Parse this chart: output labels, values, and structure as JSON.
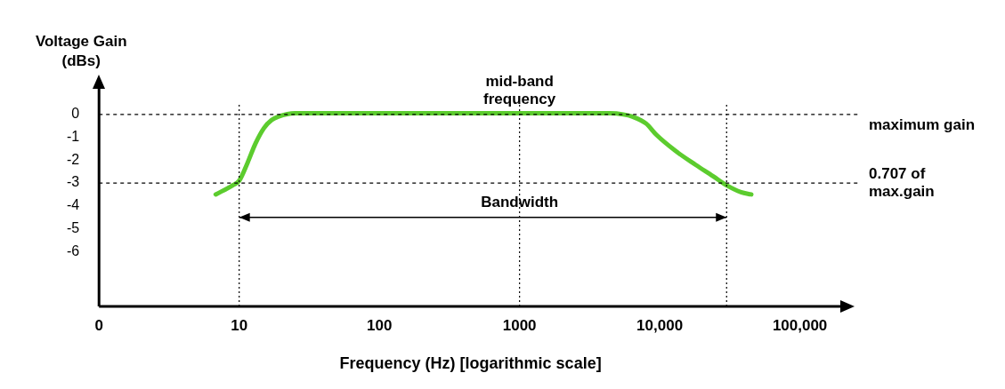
{
  "chart_data": {
    "type": "line",
    "xlabel": "Frequency (Hz) [logarithmic scale]",
    "ylabel": "Voltage Gain (dBs)",
    "log": "x",
    "grid": false,
    "legend": false,
    "marker": "none",
    "line_style": "solid",
    "xlim": [
      0,
      200000
    ],
    "xticks": [
      0,
      10,
      100,
      1000,
      {
        "value": 10000,
        "label": "10,000"
      },
      {
        "value": 100000,
        "label": "100,000"
      }
    ],
    "ylim": [
      -8.4,
      1.2
    ],
    "yticks": [
      0,
      -1,
      -2,
      -3,
      -4,
      -5,
      -6
    ],
    "series": [
      {
        "color": "#5ccc2e",
        "x": [
          6.8,
          9,
          10,
          11.5,
          13,
          15,
          17,
          19,
          25,
          100,
          1000,
          4400,
          5500,
          6400,
          8000,
          9500,
          13000,
          18000,
          24000,
          30000,
          38000,
          45000
        ],
        "values": [
          -3.5,
          -3.1,
          -2.9,
          -2.1,
          -1.3,
          -0.6,
          -0.25,
          -0.1,
          0.05,
          0.05,
          0.05,
          0.05,
          0,
          -0.1,
          -0.4,
          -0.9,
          -1.6,
          -2.2,
          -2.7,
          -3.1,
          -3.4,
          -3.5
        ]
      }
    ],
    "ref_lines": [
      {
        "axis": "y",
        "value": 0,
        "label": "maximum gain",
        "line_style": "dashed"
      },
      {
        "axis": "y",
        "value": -3,
        "label": "0.707 of max.gain",
        "line_style": "dashed"
      },
      {
        "axis": "x",
        "value": 1000,
        "label": "mid-band frequency",
        "line_style": "dotted"
      },
      {
        "axis": "x",
        "value": 10,
        "line_style": "dotted"
      },
      {
        "axis": "x",
        "value": 30000,
        "line_style": "dotted"
      }
    ],
    "annotations": [
      {
        "text": "Bandwidth",
        "x": 1000,
        "y": -4.5
      }
    ]
  }
}
